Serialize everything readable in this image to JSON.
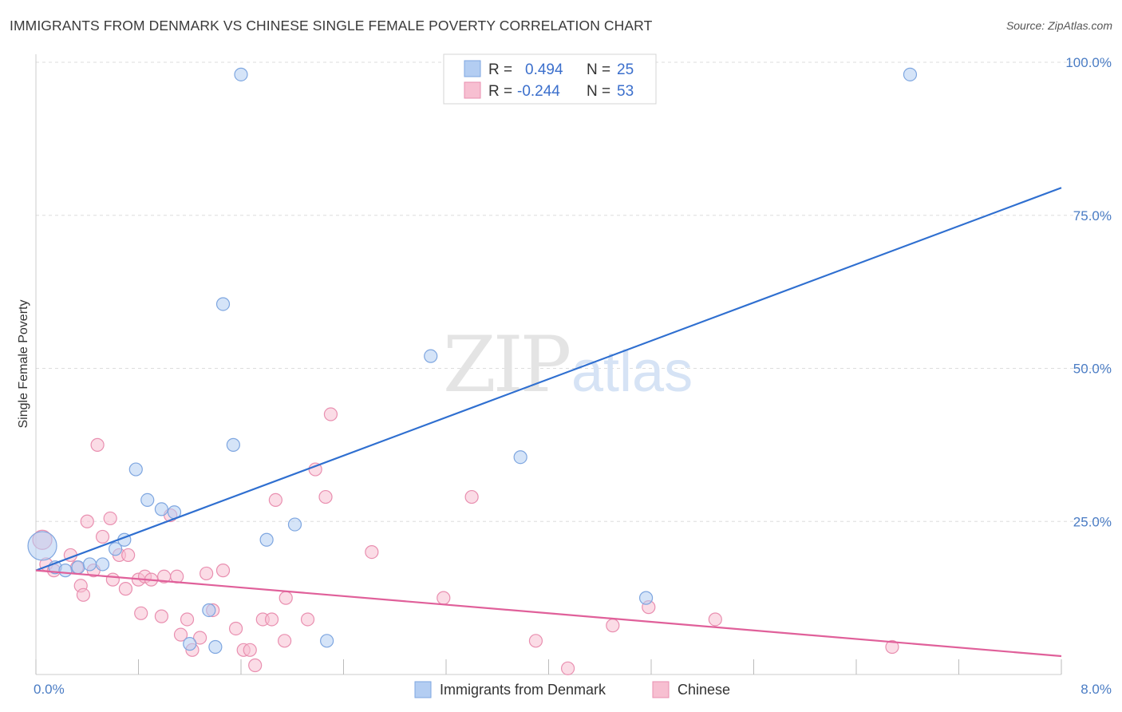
{
  "title": "IMMIGRANTS FROM DENMARK VS CHINESE SINGLE FEMALE POVERTY CORRELATION CHART",
  "source": "Source: ZipAtlas.com",
  "watermark": {
    "zip": "ZIP",
    "atlas": "atlas"
  },
  "colors": {
    "blue_fill": "#b3cdf2",
    "blue_stroke": "#7ea6e0",
    "blue_line": "#2f6fd0",
    "pink_fill": "#f7bfd1",
    "pink_stroke": "#e98fb0",
    "pink_line": "#e0609a",
    "tick_text": "#4a7cc4",
    "grid": "#dddddd"
  },
  "legend": {
    "rows": [
      {
        "r_label": "R =",
        "r_value": "0.494",
        "n_label": "N =",
        "n_value": "25",
        "series": "denmark"
      },
      {
        "r_label": "R =",
        "r_value": "-0.244",
        "n_label": "N =",
        "n_value": "53",
        "series": "chinese"
      }
    ]
  },
  "bottom_legend": [
    "Immigrants from Denmark",
    "Chinese"
  ],
  "chart_data": {
    "type": "scatter",
    "title": "IMMIGRANTS FROM DENMARK VS CHINESE SINGLE FEMALE POVERTY CORRELATION CHART",
    "xlabel": "",
    "ylabel": "Single Female Poverty",
    "xlim": [
      0,
      8
    ],
    "ylim": [
      0,
      100
    ],
    "x_tick_labels": [
      "0.0%",
      "8.0%"
    ],
    "y_ticks": [
      25,
      50,
      75,
      100
    ],
    "y_tick_labels": [
      "25.0%",
      "50.0%",
      "75.0%",
      "100.0%"
    ],
    "grid": true,
    "legend_position": "top-center",
    "series": [
      {
        "name": "Immigrants from Denmark",
        "color": "blue",
        "points": [
          [
            0.05,
            21.0,
            18
          ],
          [
            0.15,
            17.5,
            8
          ],
          [
            0.23,
            17.0,
            8
          ],
          [
            0.33,
            17.5,
            8
          ],
          [
            0.42,
            18.0,
            8
          ],
          [
            0.52,
            18.0,
            8
          ],
          [
            0.62,
            20.5,
            8
          ],
          [
            0.69,
            22.0,
            8
          ],
          [
            0.78,
            33.5,
            8
          ],
          [
            0.87,
            28.5,
            8
          ],
          [
            0.98,
            27.0,
            8
          ],
          [
            1.08,
            26.5,
            8
          ],
          [
            1.2,
            5.0,
            8
          ],
          [
            1.35,
            10.5,
            8
          ],
          [
            1.4,
            4.5,
            8
          ],
          [
            1.46,
            60.5,
            8
          ],
          [
            1.54,
            37.5,
            8
          ],
          [
            1.6,
            98.0,
            8
          ],
          [
            1.8,
            22.0,
            8
          ],
          [
            2.02,
            24.5,
            8
          ],
          [
            2.27,
            5.5,
            8
          ],
          [
            3.08,
            52.0,
            8
          ],
          [
            3.78,
            35.5,
            8
          ],
          [
            4.76,
            12.5,
            8
          ],
          [
            6.82,
            98.0,
            8
          ]
        ],
        "trend": {
          "x": [
            0.0,
            8.0
          ],
          "y": [
            17.0,
            79.5
          ],
          "r": 0.494,
          "n": 25
        }
      },
      {
        "name": "Chinese",
        "color": "pink",
        "points": [
          [
            0.05,
            22.0,
            12
          ],
          [
            0.08,
            18.0,
            8
          ],
          [
            0.14,
            17.0,
            8
          ],
          [
            0.27,
            19.5,
            8
          ],
          [
            0.32,
            17.5,
            8
          ],
          [
            0.35,
            14.5,
            8
          ],
          [
            0.37,
            13.0,
            8
          ],
          [
            0.4,
            25.0,
            8
          ],
          [
            0.45,
            17.0,
            8
          ],
          [
            0.48,
            37.5,
            8
          ],
          [
            0.52,
            22.5,
            8
          ],
          [
            0.58,
            25.5,
            8
          ],
          [
            0.6,
            15.5,
            8
          ],
          [
            0.65,
            19.5,
            8
          ],
          [
            0.7,
            14.0,
            8
          ],
          [
            0.72,
            19.5,
            8
          ],
          [
            0.8,
            15.5,
            8
          ],
          [
            0.82,
            10.0,
            8
          ],
          [
            0.85,
            16.0,
            8
          ],
          [
            0.9,
            15.5,
            8
          ],
          [
            0.98,
            9.5,
            8
          ],
          [
            1.0,
            16.0,
            8
          ],
          [
            1.05,
            26.0,
            8
          ],
          [
            1.1,
            16.0,
            8
          ],
          [
            1.13,
            6.5,
            8
          ],
          [
            1.18,
            9.0,
            8
          ],
          [
            1.22,
            4.0,
            8
          ],
          [
            1.28,
            6.0,
            8
          ],
          [
            1.33,
            16.5,
            8
          ],
          [
            1.38,
            10.5,
            8
          ],
          [
            1.46,
            17.0,
            8
          ],
          [
            1.56,
            7.5,
            8
          ],
          [
            1.62,
            4.0,
            8
          ],
          [
            1.67,
            4.0,
            8
          ],
          [
            1.71,
            1.5,
            8
          ],
          [
            1.77,
            9.0,
            8
          ],
          [
            1.84,
            9.0,
            8
          ],
          [
            1.87,
            28.5,
            8
          ],
          [
            1.94,
            5.5,
            8
          ],
          [
            1.95,
            12.5,
            8
          ],
          [
            2.12,
            9.0,
            8
          ],
          [
            2.18,
            33.5,
            8
          ],
          [
            2.26,
            29.0,
            8
          ],
          [
            2.3,
            42.5,
            8
          ],
          [
            2.62,
            20.0,
            8
          ],
          [
            3.18,
            12.5,
            8
          ],
          [
            3.4,
            29.0,
            8
          ],
          [
            3.9,
            5.5,
            8
          ],
          [
            4.15,
            1.0,
            8
          ],
          [
            4.5,
            8.0,
            8
          ],
          [
            4.78,
            11.0,
            8
          ],
          [
            5.3,
            9.0,
            8
          ],
          [
            6.68,
            4.5,
            8
          ]
        ],
        "trend": {
          "x": [
            0.0,
            8.0
          ],
          "y": [
            17.0,
            3.0
          ],
          "r": -0.244,
          "n": 53
        }
      }
    ]
  }
}
